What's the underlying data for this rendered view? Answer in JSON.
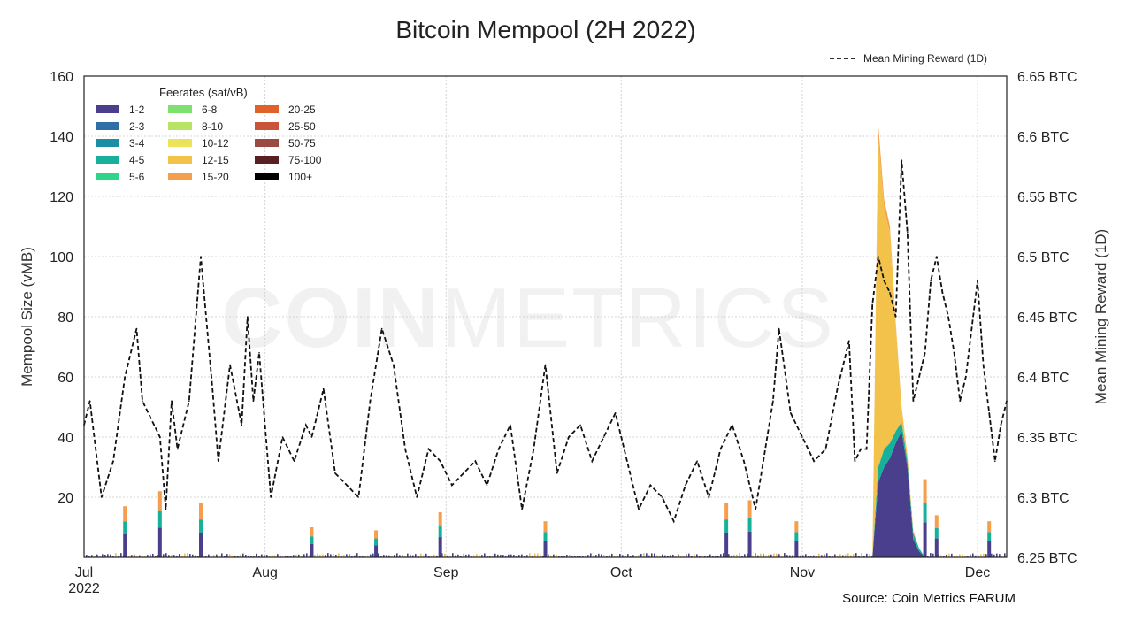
{
  "chart_data": {
    "type": "area",
    "title": "Bitcoin Mempool (2H 2022)",
    "source": "Source: Coin Metrics FARUM",
    "watermark": {
      "bold": "COIN",
      "light": "METRICS"
    },
    "x_ticks": [
      {
        "label": "Jul",
        "sub": "2022",
        "date": "2022-07-01"
      },
      {
        "label": "Aug",
        "sub": "",
        "date": "2022-08-01"
      },
      {
        "label": "Sep",
        "sub": "",
        "date": "2022-09-01"
      },
      {
        "label": "Oct",
        "sub": "",
        "date": "2022-10-01"
      },
      {
        "label": "Nov",
        "sub": "",
        "date": "2022-11-01"
      },
      {
        "label": "Dec",
        "sub": "",
        "date": "2022-12-01"
      }
    ],
    "xlim": [
      "2022-07-01",
      "2022-12-06"
    ],
    "y_left": {
      "label": "Mempool Size (vMB)",
      "lim": [
        0,
        160
      ],
      "ticks": [
        20,
        40,
        60,
        80,
        100,
        120,
        140,
        160
      ]
    },
    "y_right": {
      "label": "Mean Mining Reward (1D)",
      "lim": [
        6.25,
        6.65
      ],
      "ticks": [
        {
          "value": 6.25,
          "label": "6.25 BTC"
        },
        {
          "value": 6.3,
          "label": "6.3 BTC"
        },
        {
          "value": 6.35,
          "label": "6.35 BTC"
        },
        {
          "value": 6.4,
          "label": "6.4 BTC"
        },
        {
          "value": 6.45,
          "label": "6.45 BTC"
        },
        {
          "value": 6.5,
          "label": "6.5 BTC"
        },
        {
          "value": 6.55,
          "label": "6.55 BTC"
        },
        {
          "value": 6.6,
          "label": "6.6 BTC"
        },
        {
          "value": 6.65,
          "label": "6.65 BTC"
        }
      ]
    },
    "grid": true,
    "legend": {
      "title": "Feerates (sat/vB)",
      "placement": "top-left",
      "entries": [
        {
          "label": "1-2",
          "color": "#4a3f8c"
        },
        {
          "label": "2-3",
          "color": "#2f6ea6"
        },
        {
          "label": "3-4",
          "color": "#1b8ea6"
        },
        {
          "label": "4-5",
          "color": "#17b09a"
        },
        {
          "label": "5-6",
          "color": "#2fd68a"
        },
        {
          "label": "6-8",
          "color": "#7ee06e"
        },
        {
          "label": "8-10",
          "color": "#b8e465"
        },
        {
          "label": "10-12",
          "color": "#ece458"
        },
        {
          "label": "12-15",
          "color": "#f2c24b"
        },
        {
          "label": "15-20",
          "color": "#f59e4e"
        },
        {
          "label": "20-25",
          "color": "#e0622a"
        },
        {
          "label": "25-50",
          "color": "#c8543a"
        },
        {
          "label": "50-75",
          "color": "#9a4a40"
        },
        {
          "label": "75-100",
          "color": "#5a1f22"
        },
        {
          "label": "100+",
          "color": "#000000"
        }
      ]
    },
    "reward_series": {
      "name": "Mean Mining Reward (1D)",
      "color": "#111111",
      "dates": [
        "2022-07-01",
        "2022-07-02",
        "2022-07-04",
        "2022-07-06",
        "2022-07-08",
        "2022-07-10",
        "2022-07-11",
        "2022-07-13",
        "2022-07-14",
        "2022-07-15",
        "2022-07-16",
        "2022-07-17",
        "2022-07-19",
        "2022-07-21",
        "2022-07-23",
        "2022-07-24",
        "2022-07-26",
        "2022-07-28",
        "2022-07-29",
        "2022-07-30",
        "2022-07-31",
        "2022-08-02",
        "2022-08-04",
        "2022-08-06",
        "2022-08-08",
        "2022-08-09",
        "2022-08-10",
        "2022-08-11",
        "2022-08-13",
        "2022-08-15",
        "2022-08-17",
        "2022-08-19",
        "2022-08-21",
        "2022-08-23",
        "2022-08-25",
        "2022-08-27",
        "2022-08-29",
        "2022-08-31",
        "2022-09-02",
        "2022-09-04",
        "2022-09-06",
        "2022-09-08",
        "2022-09-10",
        "2022-09-12",
        "2022-09-14",
        "2022-09-16",
        "2022-09-18",
        "2022-09-20",
        "2022-09-22",
        "2022-09-24",
        "2022-09-26",
        "2022-09-28",
        "2022-09-30",
        "2022-10-02",
        "2022-10-04",
        "2022-10-06",
        "2022-10-08",
        "2022-10-10",
        "2022-10-12",
        "2022-10-14",
        "2022-10-16",
        "2022-10-18",
        "2022-10-20",
        "2022-10-22",
        "2022-10-24",
        "2022-10-26",
        "2022-10-27",
        "2022-10-28",
        "2022-10-30",
        "2022-11-01",
        "2022-11-03",
        "2022-11-05",
        "2022-11-07",
        "2022-11-09",
        "2022-11-10",
        "2022-11-11",
        "2022-11-12",
        "2022-11-13",
        "2022-11-14",
        "2022-11-15",
        "2022-11-16",
        "2022-11-17",
        "2022-11-18",
        "2022-11-19",
        "2022-11-20",
        "2022-11-21",
        "2022-11-22",
        "2022-11-23",
        "2022-11-24",
        "2022-11-25",
        "2022-11-26",
        "2022-11-27",
        "2022-11-28",
        "2022-11-29",
        "2022-11-30",
        "2022-12-01",
        "2022-12-02",
        "2022-12-03",
        "2022-12-04",
        "2022-12-05",
        "2022-12-06"
      ],
      "values": [
        6.36,
        6.38,
        6.3,
        6.33,
        6.4,
        6.44,
        6.38,
        6.36,
        6.35,
        6.29,
        6.38,
        6.34,
        6.38,
        6.5,
        6.39,
        6.33,
        6.41,
        6.36,
        6.45,
        6.38,
        6.42,
        6.3,
        6.35,
        6.33,
        6.36,
        6.35,
        6.37,
        6.39,
        6.32,
        6.31,
        6.3,
        6.38,
        6.44,
        6.41,
        6.34,
        6.3,
        6.34,
        6.33,
        6.31,
        6.32,
        6.33,
        6.31,
        6.34,
        6.36,
        6.29,
        6.34,
        6.41,
        6.32,
        6.35,
        6.36,
        6.33,
        6.35,
        6.37,
        6.33,
        6.29,
        6.31,
        6.3,
        6.28,
        6.31,
        6.33,
        6.3,
        6.34,
        6.36,
        6.33,
        6.29,
        6.35,
        6.38,
        6.44,
        6.37,
        6.35,
        6.33,
        6.34,
        6.39,
        6.43,
        6.33,
        6.34,
        6.34,
        6.46,
        6.5,
        6.48,
        6.47,
        6.45,
        6.58,
        6.52,
        6.38,
        6.4,
        6.42,
        6.48,
        6.5,
        6.47,
        6.45,
        6.42,
        6.38,
        6.4,
        6.44,
        6.48,
        6.41,
        6.37,
        6.33,
        6.36,
        6.38
      ]
    },
    "mempool_spikes": [
      {
        "date": "2022-07-08",
        "value": 17
      },
      {
        "date": "2022-07-14",
        "value": 22
      },
      {
        "date": "2022-07-21",
        "value": 18
      },
      {
        "date": "2022-08-09",
        "value": 10
      },
      {
        "date": "2022-08-20",
        "value": 9
      },
      {
        "date": "2022-08-31",
        "value": 15
      },
      {
        "date": "2022-09-18",
        "value": 12
      },
      {
        "date": "2022-10-19",
        "value": 18
      },
      {
        "date": "2022-10-23",
        "value": 19
      },
      {
        "date": "2022-10-31",
        "value": 12
      },
      {
        "date": "2022-11-22",
        "value": 26
      },
      {
        "date": "2022-11-24",
        "value": 14
      },
      {
        "date": "2022-12-03",
        "value": 12
      }
    ],
    "mempool_event": {
      "dates": [
        "2022-11-13",
        "2022-11-14",
        "2022-11-15",
        "2022-11-16",
        "2022-11-17",
        "2022-11-18",
        "2022-11-19",
        "2022-11-20",
        "2022-11-21",
        "2022-11-22"
      ],
      "band_1_2": [
        0,
        25,
        30,
        33,
        38,
        42,
        30,
        6,
        2,
        0
      ],
      "band_mid": [
        0,
        5,
        6,
        5,
        4,
        3,
        2,
        2,
        1,
        0
      ],
      "band_12_15": [
        0,
        110,
        80,
        70,
        35,
        4,
        2,
        1,
        0,
        0
      ],
      "band_15_20": [
        0,
        4,
        3,
        2,
        1,
        1,
        0,
        0,
        0,
        0
      ]
    }
  }
}
